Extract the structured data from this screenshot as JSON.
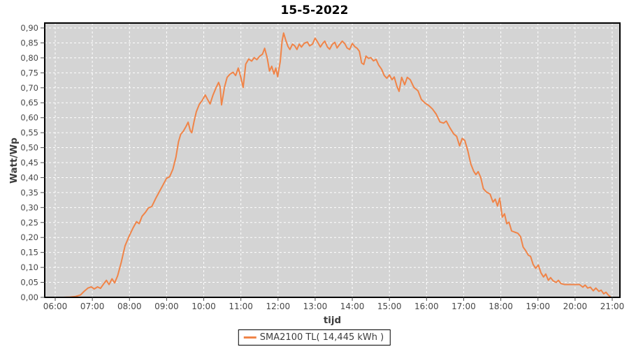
{
  "title": "15-5-2022",
  "axes": {
    "x_label": "tijd",
    "y_label": "Watt/Wp"
  },
  "legend": {
    "label": "SMA2100 TL( 14,445 kWh )"
  },
  "colors": {
    "line": "#f08448",
    "plot_bg": "#d4d4d4",
    "grid": "#ffffff",
    "plot_border": "#000000",
    "tick_mark": "#4d4d4d",
    "tick_text": "#474747"
  },
  "chart_data": {
    "type": "line",
    "title": "15-5-2022",
    "xlabel": "tijd",
    "ylabel": "Watt/Wp",
    "xlim": [
      6,
      21
    ],
    "ylim": [
      0,
      0.9
    ],
    "grid": true,
    "grid_style": "white dashed on gray plot background",
    "legend_position": "bottom-center",
    "x_ticks": [
      "06:00",
      "07:00",
      "08:00",
      "09:00",
      "10:00",
      "11:00",
      "12:00",
      "13:00",
      "14:00",
      "15:00",
      "16:00",
      "17:00",
      "18:00",
      "19:00",
      "20:00",
      "21:00"
    ],
    "y_ticks": [
      "0,00",
      "0,05",
      "0,10",
      "0,15",
      "0,20",
      "0,25",
      "0,30",
      "0,35",
      "0,40",
      "0,45",
      "0,50",
      "0,55",
      "0,60",
      "0,65",
      "0,70",
      "0,75",
      "0,80",
      "0,85",
      "0,90"
    ],
    "series": [
      {
        "name": "SMA2100 TL( 14,445 kWh )",
        "color": "#f08448",
        "points": [
          [
            6.05,
            0.0
          ],
          [
            6.22,
            0.0
          ],
          [
            6.4,
            0.001
          ],
          [
            6.55,
            0.003
          ],
          [
            6.68,
            0.008
          ],
          [
            6.78,
            0.02
          ],
          [
            6.88,
            0.031
          ],
          [
            6.97,
            0.035
          ],
          [
            7.05,
            0.028
          ],
          [
            7.14,
            0.035
          ],
          [
            7.22,
            0.03
          ],
          [
            7.31,
            0.046
          ],
          [
            7.38,
            0.057
          ],
          [
            7.45,
            0.043
          ],
          [
            7.53,
            0.062
          ],
          [
            7.6,
            0.048
          ],
          [
            7.68,
            0.072
          ],
          [
            7.78,
            0.118
          ],
          [
            7.88,
            0.172
          ],
          [
            8.0,
            0.207
          ],
          [
            8.1,
            0.233
          ],
          [
            8.19,
            0.253
          ],
          [
            8.26,
            0.246
          ],
          [
            8.34,
            0.271
          ],
          [
            8.43,
            0.284
          ],
          [
            8.51,
            0.299
          ],
          [
            8.6,
            0.303
          ],
          [
            8.7,
            0.329
          ],
          [
            8.8,
            0.352
          ],
          [
            8.9,
            0.375
          ],
          [
            9.0,
            0.398
          ],
          [
            9.08,
            0.403
          ],
          [
            9.17,
            0.428
          ],
          [
            9.25,
            0.468
          ],
          [
            9.32,
            0.52
          ],
          [
            9.38,
            0.545
          ],
          [
            9.45,
            0.555
          ],
          [
            9.52,
            0.57
          ],
          [
            9.58,
            0.585
          ],
          [
            9.64,
            0.556
          ],
          [
            9.68,
            0.55
          ],
          [
            9.74,
            0.588
          ],
          [
            9.8,
            0.62
          ],
          [
            9.88,
            0.645
          ],
          [
            9.96,
            0.658
          ],
          [
            10.04,
            0.676
          ],
          [
            10.1,
            0.662
          ],
          [
            10.17,
            0.646
          ],
          [
            10.25,
            0.676
          ],
          [
            10.33,
            0.7
          ],
          [
            10.4,
            0.718
          ],
          [
            10.44,
            0.704
          ],
          [
            10.48,
            0.643
          ],
          [
            10.56,
            0.703
          ],
          [
            10.63,
            0.735
          ],
          [
            10.71,
            0.746
          ],
          [
            10.79,
            0.752
          ],
          [
            10.86,
            0.741
          ],
          [
            10.93,
            0.766
          ],
          [
            11.0,
            0.734
          ],
          [
            11.06,
            0.701
          ],
          [
            11.13,
            0.779
          ],
          [
            11.21,
            0.796
          ],
          [
            11.29,
            0.789
          ],
          [
            11.36,
            0.801
          ],
          [
            11.43,
            0.794
          ],
          [
            11.51,
            0.806
          ],
          [
            11.58,
            0.812
          ],
          [
            11.64,
            0.832
          ],
          [
            11.71,
            0.799
          ],
          [
            11.77,
            0.756
          ],
          [
            11.83,
            0.772
          ],
          [
            11.89,
            0.746
          ],
          [
            11.94,
            0.766
          ],
          [
            11.99,
            0.737
          ],
          [
            12.06,
            0.788
          ],
          [
            12.11,
            0.856
          ],
          [
            12.15,
            0.883
          ],
          [
            12.21,
            0.858
          ],
          [
            12.27,
            0.838
          ],
          [
            12.32,
            0.828
          ],
          [
            12.39,
            0.846
          ],
          [
            12.45,
            0.84
          ],
          [
            12.51,
            0.828
          ],
          [
            12.57,
            0.846
          ],
          [
            12.63,
            0.836
          ],
          [
            12.71,
            0.849
          ],
          [
            12.79,
            0.853
          ],
          [
            12.85,
            0.84
          ],
          [
            12.93,
            0.846
          ],
          [
            13.0,
            0.866
          ],
          [
            13.07,
            0.852
          ],
          [
            13.14,
            0.836
          ],
          [
            13.2,
            0.848
          ],
          [
            13.26,
            0.856
          ],
          [
            13.33,
            0.836
          ],
          [
            13.39,
            0.829
          ],
          [
            13.46,
            0.845
          ],
          [
            13.53,
            0.852
          ],
          [
            13.59,
            0.833
          ],
          [
            13.66,
            0.845
          ],
          [
            13.73,
            0.856
          ],
          [
            13.8,
            0.847
          ],
          [
            13.86,
            0.833
          ],
          [
            13.93,
            0.828
          ],
          [
            14.0,
            0.848
          ],
          [
            14.07,
            0.837
          ],
          [
            14.13,
            0.832
          ],
          [
            14.19,
            0.822
          ],
          [
            14.25,
            0.783
          ],
          [
            14.31,
            0.778
          ],
          [
            14.37,
            0.806
          ],
          [
            14.44,
            0.798
          ],
          [
            14.5,
            0.801
          ],
          [
            14.57,
            0.79
          ],
          [
            14.64,
            0.795
          ],
          [
            14.71,
            0.776
          ],
          [
            14.79,
            0.762
          ],
          [
            14.86,
            0.741
          ],
          [
            14.93,
            0.732
          ],
          [
            15.0,
            0.743
          ],
          [
            15.07,
            0.727
          ],
          [
            15.13,
            0.736
          ],
          [
            15.2,
            0.706
          ],
          [
            15.26,
            0.688
          ],
          [
            15.33,
            0.735
          ],
          [
            15.41,
            0.71
          ],
          [
            15.48,
            0.735
          ],
          [
            15.56,
            0.727
          ],
          [
            15.66,
            0.701
          ],
          [
            15.77,
            0.69
          ],
          [
            15.86,
            0.661
          ],
          [
            15.96,
            0.649
          ],
          [
            16.06,
            0.641
          ],
          [
            16.16,
            0.629
          ],
          [
            16.26,
            0.612
          ],
          [
            16.36,
            0.586
          ],
          [
            16.46,
            0.582
          ],
          [
            16.53,
            0.589
          ],
          [
            16.63,
            0.566
          ],
          [
            16.73,
            0.546
          ],
          [
            16.81,
            0.538
          ],
          [
            16.89,
            0.506
          ],
          [
            16.96,
            0.531
          ],
          [
            17.03,
            0.524
          ],
          [
            17.11,
            0.49
          ],
          [
            17.19,
            0.446
          ],
          [
            17.27,
            0.421
          ],
          [
            17.33,
            0.41
          ],
          [
            17.39,
            0.42
          ],
          [
            17.46,
            0.4
          ],
          [
            17.53,
            0.363
          ],
          [
            17.61,
            0.352
          ],
          [
            17.71,
            0.345
          ],
          [
            17.79,
            0.318
          ],
          [
            17.85,
            0.328
          ],
          [
            17.91,
            0.305
          ],
          [
            17.97,
            0.331
          ],
          [
            18.04,
            0.268
          ],
          [
            18.1,
            0.279
          ],
          [
            18.16,
            0.246
          ],
          [
            18.22,
            0.251
          ],
          [
            18.29,
            0.222
          ],
          [
            18.37,
            0.218
          ],
          [
            18.46,
            0.214
          ],
          [
            18.53,
            0.203
          ],
          [
            18.6,
            0.168
          ],
          [
            18.67,
            0.156
          ],
          [
            18.74,
            0.141
          ],
          [
            18.8,
            0.137
          ],
          [
            18.87,
            0.11
          ],
          [
            18.94,
            0.097
          ],
          [
            19.01,
            0.108
          ],
          [
            19.08,
            0.082
          ],
          [
            19.15,
            0.068
          ],
          [
            19.21,
            0.078
          ],
          [
            19.28,
            0.057
          ],
          [
            19.34,
            0.066
          ],
          [
            19.41,
            0.055
          ],
          [
            19.49,
            0.05
          ],
          [
            19.55,
            0.057
          ],
          [
            19.62,
            0.046
          ],
          [
            19.72,
            0.043
          ],
          [
            19.85,
            0.043
          ],
          [
            20.0,
            0.043
          ],
          [
            20.12,
            0.043
          ],
          [
            20.21,
            0.034
          ],
          [
            20.27,
            0.041
          ],
          [
            20.34,
            0.031
          ],
          [
            20.41,
            0.034
          ],
          [
            20.49,
            0.022
          ],
          [
            20.56,
            0.031
          ],
          [
            20.64,
            0.02
          ],
          [
            20.7,
            0.024
          ],
          [
            20.77,
            0.012
          ],
          [
            20.83,
            0.017
          ],
          [
            20.9,
            0.007
          ],
          [
            20.95,
            0.002
          ]
        ]
      }
    ]
  }
}
